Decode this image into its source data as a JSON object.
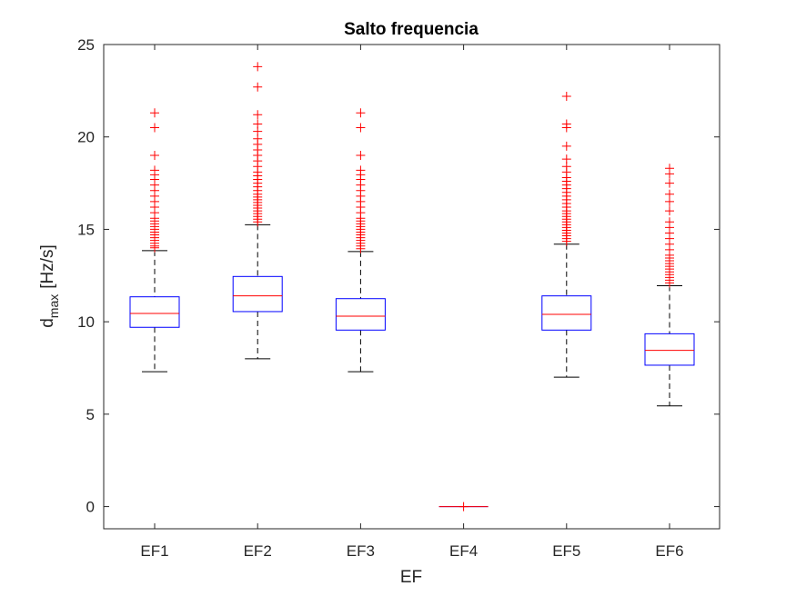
{
  "chart_data": {
    "type": "boxplot",
    "title": "Salto frequencia",
    "xlabel": "EF",
    "ylabel_main": "d",
    "ylabel_sub": "max",
    "ylabel_unit": "[Hz/s]",
    "ylim": [
      -1.2,
      25
    ],
    "yticks": [
      0,
      5,
      10,
      15,
      20,
      25
    ],
    "grid": false,
    "categories": [
      "EF1",
      "EF2",
      "EF3",
      "EF4",
      "EF5",
      "EF6"
    ],
    "boxes": [
      {
        "name": "EF1",
        "whisker_low": 7.3,
        "q1": 9.7,
        "median": 10.45,
        "q3": 11.35,
        "whisker_high": 13.85,
        "outliers": [
          14.0,
          14.1,
          14.25,
          14.4,
          14.55,
          14.7,
          14.85,
          15.0,
          15.15,
          15.3,
          15.45,
          15.6,
          15.9,
          16.2,
          16.5,
          16.8,
          17.1,
          17.4,
          17.7,
          17.95,
          18.2,
          19.0,
          20.5,
          21.3
        ]
      },
      {
        "name": "EF2",
        "whisker_low": 8.0,
        "q1": 10.55,
        "median": 11.4,
        "q3": 12.45,
        "whisker_high": 15.25,
        "outliers": [
          15.4,
          15.55,
          15.7,
          15.85,
          16.0,
          16.15,
          16.3,
          16.45,
          16.6,
          16.75,
          16.9,
          17.1,
          17.3,
          17.5,
          17.7,
          17.9,
          18.1,
          18.4,
          18.7,
          19.0,
          19.3,
          19.6,
          19.9,
          20.3,
          20.7,
          21.2,
          22.7,
          23.8
        ]
      },
      {
        "name": "EF3",
        "whisker_low": 7.3,
        "q1": 9.55,
        "median": 10.3,
        "q3": 11.25,
        "whisker_high": 13.8,
        "outliers": [
          13.95,
          14.1,
          14.25,
          14.4,
          14.55,
          14.7,
          14.85,
          15.0,
          15.15,
          15.3,
          15.45,
          15.6,
          15.9,
          16.2,
          16.5,
          16.8,
          17.1,
          17.4,
          17.7,
          17.95,
          18.2,
          19.0,
          20.5,
          21.3
        ]
      },
      {
        "name": "EF4",
        "whisker_low": 0,
        "q1": 0,
        "median": 0,
        "q3": 0,
        "whisker_high": 0,
        "outliers": [
          0
        ]
      },
      {
        "name": "EF5",
        "whisker_low": 7.0,
        "q1": 9.55,
        "median": 10.4,
        "q3": 11.4,
        "whisker_high": 14.2,
        "outliers": [
          14.35,
          14.5,
          14.65,
          14.8,
          14.95,
          15.1,
          15.25,
          15.4,
          15.55,
          15.7,
          15.85,
          16.0,
          16.2,
          16.4,
          16.6,
          16.8,
          17.0,
          17.2,
          17.4,
          17.6,
          17.8,
          18.1,
          18.4,
          18.8,
          19.5,
          20.5,
          20.7,
          22.2
        ]
      },
      {
        "name": "EF6",
        "whisker_low": 5.45,
        "q1": 7.65,
        "median": 8.45,
        "q3": 9.35,
        "whisker_high": 11.95,
        "outliers": [
          12.1,
          12.25,
          12.4,
          12.55,
          12.7,
          12.85,
          13.0,
          13.15,
          13.3,
          13.45,
          13.6,
          13.9,
          14.2,
          14.5,
          14.8,
          15.1,
          15.4,
          16.0,
          16.5,
          16.9,
          17.5,
          18.0,
          18.3
        ]
      }
    ],
    "colors": {
      "box": "#0000ff",
      "median": "#ff0000",
      "whisker": "#000000",
      "outlier": "#ff0000",
      "axes": "#262626"
    }
  }
}
